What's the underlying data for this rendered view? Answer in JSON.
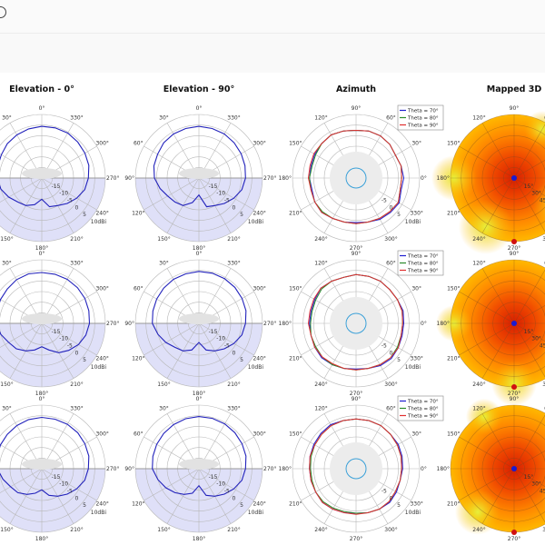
{
  "header": {
    "icon": "circle-icon"
  },
  "columns": [
    "Elevation - 0°",
    "Elevation - 90°",
    "Azimuth",
    "Mapped 3D"
  ],
  "chart_data": {
    "type": "polar",
    "grid": true,
    "radial_ticks": [
      "-15",
      "-10",
      "-5",
      "0",
      "5",
      "10dBi"
    ],
    "radial_range_dbi": [
      -20,
      10
    ],
    "elevation_angle_ticks": [
      "0°",
      "30°",
      "60°",
      "90°",
      "120°",
      "150°",
      "180°",
      "210°",
      "240°",
      "270°",
      "300°",
      "330°"
    ],
    "azimuth_angle_ticks": [
      "0°",
      "30°",
      "60°",
      "90°",
      "120°",
      "150°",
      "180°",
      "210°",
      "240°",
      "270°",
      "300°",
      "330°"
    ],
    "azimuth_radial_ticks": [
      "-5",
      "0",
      "5",
      "10dBi"
    ],
    "mapped_radial_ticks": [
      "15°",
      "30°",
      "45°",
      "60°"
    ],
    "angles_deg": [
      0,
      15,
      30,
      45,
      60,
      75,
      90,
      105,
      120,
      135,
      150,
      165,
      180,
      195,
      210,
      225,
      240,
      255,
      270,
      285,
      300,
      315,
      330,
      345
    ],
    "legend": [
      {
        "name": "Theta = 70°",
        "color": "#1f1fd0"
      },
      {
        "name": "Theta = 80°",
        "color": "#2a8a2a"
      },
      {
        "name": "Theta = 90°",
        "color": "#e03030"
      }
    ],
    "elevation_color": "#2222bb",
    "shade_color": "#dfe0f8",
    "mapped_colorscale": [
      "#d81e00",
      "#f04a00",
      "#ff8a00",
      "#ffb800",
      "#e6f03c"
    ],
    "rows": [
      {
        "elevation_0": [
          4.4,
          4,
          3.5,
          3,
          2,
          1.5,
          1,
          0,
          -2,
          -4,
          -5,
          -7,
          -10,
          -6,
          -5,
          -3,
          -1,
          1,
          2,
          3,
          3.5,
          4,
          4.5,
          4.5
        ],
        "elevation_90": [
          4.4,
          4.2,
          4,
          3.5,
          2.5,
          2,
          1,
          -1,
          -3,
          -4,
          -5,
          -8,
          -12,
          -6,
          -5,
          -3,
          -1,
          1,
          2,
          2.5,
          3,
          3.5,
          4,
          4.2
        ],
        "azimuth": [
          [
            2.5,
            2,
            1.5,
            2.5,
            3,
            3,
            2.5,
            3,
            3.5,
            3,
            2.5,
            2,
            2,
            1.5,
            2.5,
            3,
            2,
            1.5,
            1,
            1.5,
            2.5,
            3,
            3.5,
            2
          ],
          [
            1.5,
            2,
            1.5,
            2.5,
            3,
            3,
            2.5,
            3,
            3.5,
            3,
            2,
            1.5,
            2,
            2,
            2.5,
            2.5,
            2,
            1.5,
            1.5,
            1.5,
            2,
            2.5,
            3,
            1.5
          ],
          [
            1.5,
            2,
            1.5,
            2.5,
            3,
            3,
            2.5,
            3,
            3.5,
            3,
            3,
            2.5,
            2.5,
            2,
            2.5,
            3,
            2,
            1.5,
            1.5,
            1.5,
            2,
            2.5,
            3,
            1.5
          ]
        ],
        "mapped_hotspots": [
          [
            330,
            75,
            4
          ],
          [
            240,
            80,
            4
          ],
          [
            180,
            85,
            3
          ],
          [
            60,
            80,
            2
          ]
        ]
      },
      {
        "elevation_0": [
          4,
          4.2,
          3.8,
          3,
          2.5,
          2,
          1.5,
          0,
          -2,
          -3,
          -5,
          -7,
          -9,
          -7,
          -4,
          -2,
          0,
          1.5,
          2.5,
          3,
          3.5,
          3.8,
          4,
          4
        ],
        "elevation_90": [
          4.5,
          4.2,
          4,
          3.5,
          3,
          2.5,
          2,
          0,
          -2,
          -4,
          -5,
          -7,
          -11,
          -7,
          -5,
          -3,
          -1,
          1,
          2,
          3,
          3.5,
          4,
          4.3,
          4.5
        ],
        "azimuth": [
          [
            2.5,
            3,
            2.5,
            2.5,
            3,
            3,
            3,
            2.5,
            3,
            3.5,
            2.5,
            2,
            2,
            2,
            2.5,
            3,
            2.5,
            2,
            1.5,
            2,
            3,
            3.5,
            3,
            2.5
          ],
          [
            2,
            2.5,
            2.5,
            2.5,
            3,
            3,
            3,
            2.5,
            3,
            3,
            2,
            1.5,
            1.5,
            2,
            2,
            2.5,
            2.5,
            2,
            2,
            2,
            2.5,
            3,
            2.5,
            2
          ],
          [
            2,
            2.5,
            2.5,
            2.5,
            3,
            3,
            3,
            2.5,
            3,
            3.5,
            3,
            2.5,
            2.5,
            2,
            2.5,
            2.5,
            2,
            2,
            2,
            2,
            2.5,
            3,
            3,
            2
          ]
        ],
        "mapped_hotspots": [
          [
            330,
            80,
            3
          ],
          [
            270,
            85,
            3
          ],
          [
            180,
            85,
            2
          ]
        ]
      },
      {
        "elevation_0": [
          4.2,
          4,
          3.5,
          3,
          2.5,
          2,
          1,
          -1,
          -3,
          -4,
          -6,
          -8,
          -10,
          -7,
          -5,
          -3,
          -1,
          1,
          2,
          3,
          3.5,
          4,
          4.2,
          4.2
        ],
        "elevation_90": [
          4.6,
          4.4,
          4,
          3.5,
          3,
          2.5,
          2,
          0,
          -2,
          -4,
          -6,
          -8,
          -12,
          -7,
          -5,
          -3,
          -1,
          1,
          2,
          3,
          3.5,
          4,
          4.4,
          4.6
        ],
        "azimuth": [
          [
            2,
            2.5,
            3,
            3,
            3.5,
            3.5,
            3.5,
            3.5,
            4,
            3.5,
            3,
            2.5,
            2,
            2,
            2,
            2.5,
            2,
            1.5,
            1,
            1.5,
            2,
            2.5,
            2,
            1.5
          ],
          [
            1.5,
            2,
            2.5,
            3,
            3.5,
            3.5,
            3.5,
            3.5,
            3.5,
            3,
            2.5,
            2,
            1.5,
            1.5,
            2,
            2,
            1.5,
            1,
            1,
            1.5,
            2,
            2,
            1.5,
            1.5
          ],
          [
            1.5,
            2,
            2.5,
            3,
            3.5,
            3.5,
            3.5,
            3.5,
            3.5,
            3,
            2.5,
            2.5,
            2,
            2,
            2,
            2.5,
            2,
            1.5,
            1.5,
            1.5,
            2,
            2,
            1.5,
            1.5
          ]
        ],
        "mapped_hotspots": [
          [
            330,
            80,
            3
          ],
          [
            230,
            80,
            3
          ],
          [
            120,
            85,
            2
          ]
        ]
      }
    ]
  }
}
